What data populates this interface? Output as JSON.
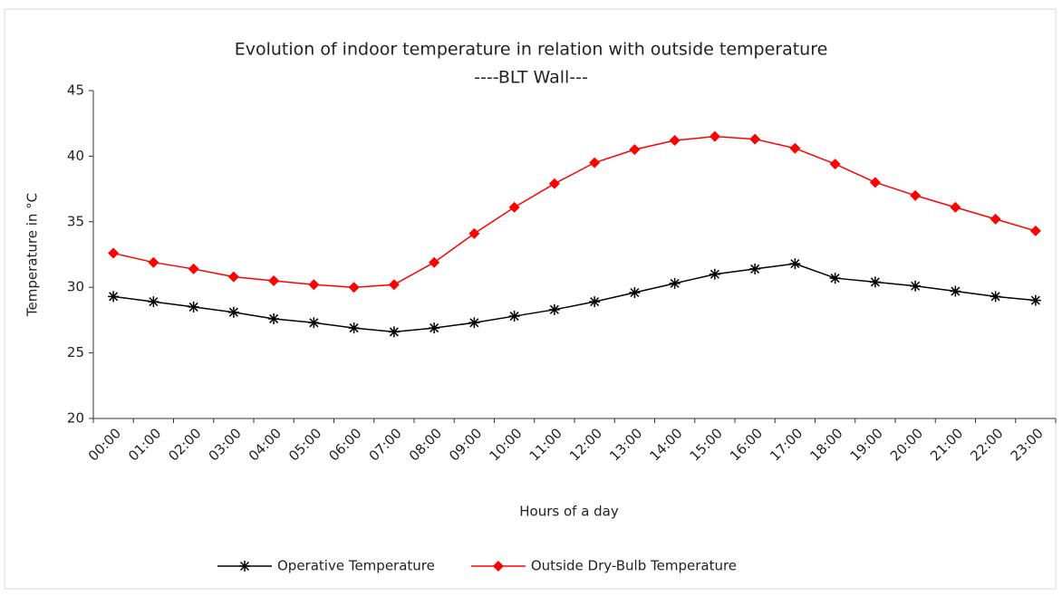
{
  "chart_data": {
    "type": "line",
    "title": "Evolution of indoor temperature in relation with outside temperature",
    "subtitle": "----BLT Wall---",
    "x_label": "Hours of a day",
    "y_label": "Temperature in °C",
    "categories": [
      "00:00",
      "01:00",
      "02:00",
      "03:00",
      "04:00",
      "05:00",
      "06:00",
      "07:00",
      "08:00",
      "09:00",
      "10:00",
      "11:00",
      "12:00",
      "13:00",
      "14:00",
      "15:00",
      "16:00",
      "17:00",
      "18:00",
      "19:00",
      "20:00",
      "21:00",
      "22:00",
      "23:00"
    ],
    "series": [
      {
        "name": "Operative Temperature",
        "color": "#000000",
        "marker": "star",
        "values": [
          29.3,
          28.9,
          28.5,
          28.1,
          27.6,
          27.3,
          26.9,
          26.6,
          26.9,
          27.3,
          27.8,
          28.3,
          28.9,
          29.6,
          30.3,
          31.0,
          31.4,
          31.8,
          30.7,
          30.4,
          30.1,
          29.7,
          29.3,
          29.0
        ]
      },
      {
        "name": "Outside Dry-Bulb Temperature",
        "color": "#ff0000",
        "marker": "diamond",
        "values": [
          32.6,
          31.9,
          31.4,
          30.8,
          30.5,
          30.2,
          30.0,
          30.2,
          31.9,
          34.1,
          36.1,
          37.9,
          39.5,
          40.5,
          41.2,
          41.5,
          41.3,
          40.6,
          39.4,
          38.0,
          37.0,
          36.1,
          35.2,
          34.3
        ]
      }
    ],
    "ylim": [
      20,
      45
    ],
    "yticks": [
      20,
      25,
      30,
      35,
      40,
      45
    ],
    "grid": false,
    "legend": "bottom"
  }
}
